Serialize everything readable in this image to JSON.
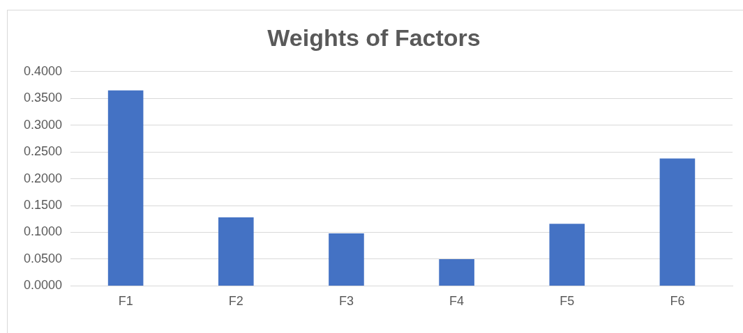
{
  "chart_data": {
    "type": "bar",
    "title": "Weights of Factors",
    "categories": [
      "F1",
      "F2",
      "F3",
      "F4",
      "F5",
      "F6"
    ],
    "values": [
      0.365,
      0.128,
      0.098,
      0.05,
      0.116,
      0.238
    ],
    "color": "#4472c4",
    "ylim": [
      0,
      0.4
    ],
    "yticks": [
      {
        "value": 0,
        "label": "0.0000"
      },
      {
        "value": 0.05,
        "label": "0.0500"
      },
      {
        "value": 0.1,
        "label": "0.1000"
      },
      {
        "value": 0.15,
        "label": "0.1500"
      },
      {
        "value": 0.2,
        "label": "0.2000"
      },
      {
        "value": 0.25,
        "label": "0.2500"
      },
      {
        "value": 0.3,
        "label": "0.3000"
      },
      {
        "value": 0.35,
        "label": "0.3500"
      },
      {
        "value": 0.4,
        "label": "0.4000"
      }
    ],
    "grid": "y",
    "legend": false
  }
}
